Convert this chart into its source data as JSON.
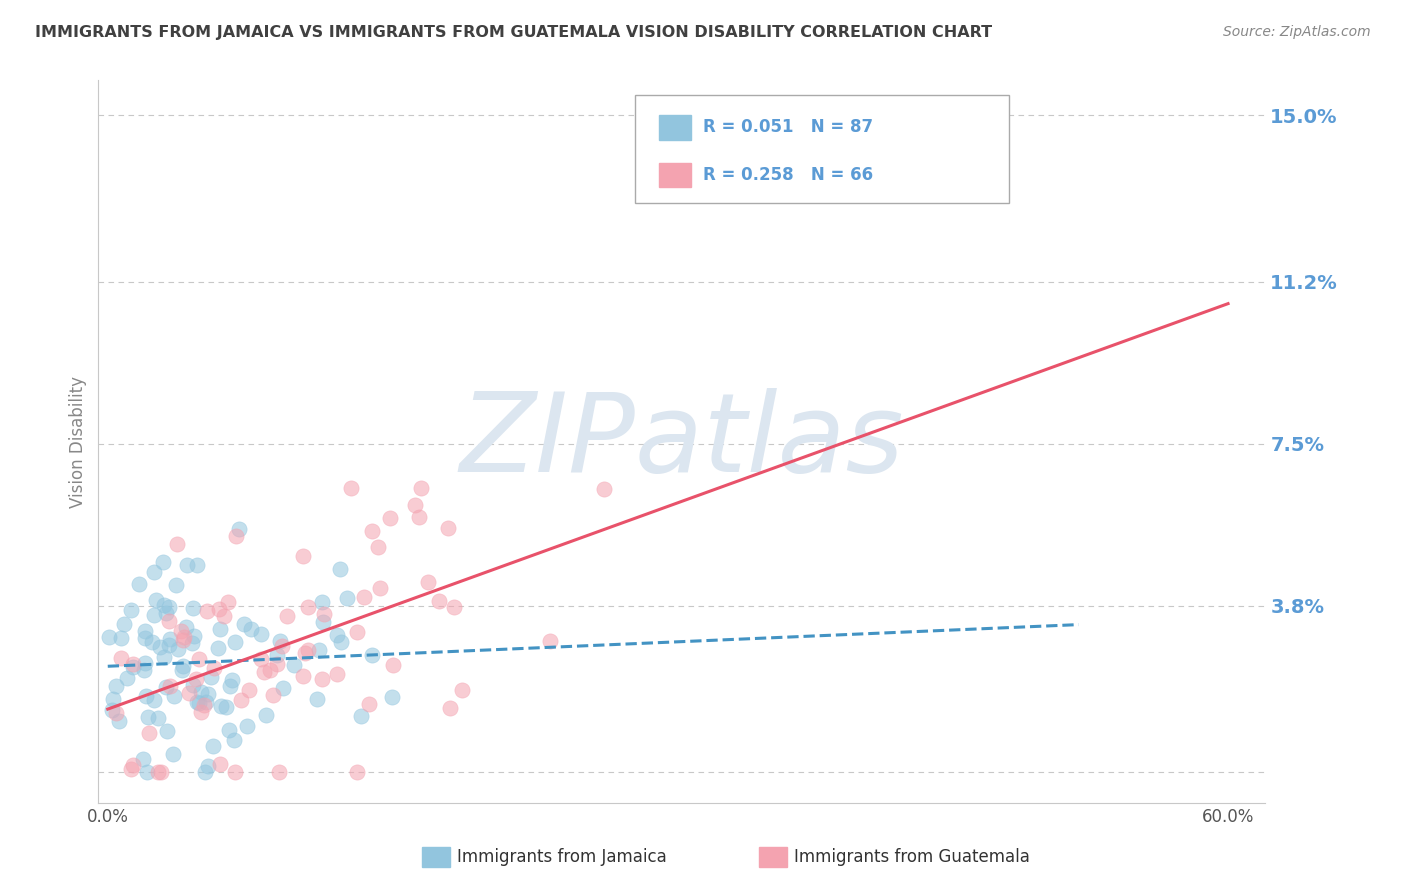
{
  "title": "IMMIGRANTS FROM JAMAICA VS IMMIGRANTS FROM GUATEMALA VISION DISABILITY CORRELATION CHART",
  "source": "Source: ZipAtlas.com",
  "ylabel": "Vision Disability",
  "yticks": [
    0.0,
    0.038,
    0.075,
    0.112,
    0.15
  ],
  "ytick_labels": [
    "",
    "3.8%",
    "7.5%",
    "11.2%",
    "15.0%"
  ],
  "xlim": [
    -0.005,
    0.62
  ],
  "ylim": [
    -0.007,
    0.158
  ],
  "jamaica_color": "#92c5de",
  "guatemala_color": "#f4a3b0",
  "jamaica_line_color": "#4393c3",
  "guatemala_line_color": "#e8526a",
  "jamaica_R": 0.051,
  "jamaica_N": 87,
  "guatemala_R": 0.258,
  "guatemala_N": 66,
  "legend_label_jamaica": "Immigrants from Jamaica",
  "legend_label_guatemala": "Immigrants from Guatemala",
  "background_color": "#ffffff",
  "grid_color": "#c8c8c8",
  "tick_label_color": "#5b9bd5",
  "title_color": "#404040",
  "watermark_text": "ZIPatlas",
  "watermark_color": "#dce6f0",
  "legend_text_color": "#5b9bd5",
  "legend_r_color": "#333333"
}
